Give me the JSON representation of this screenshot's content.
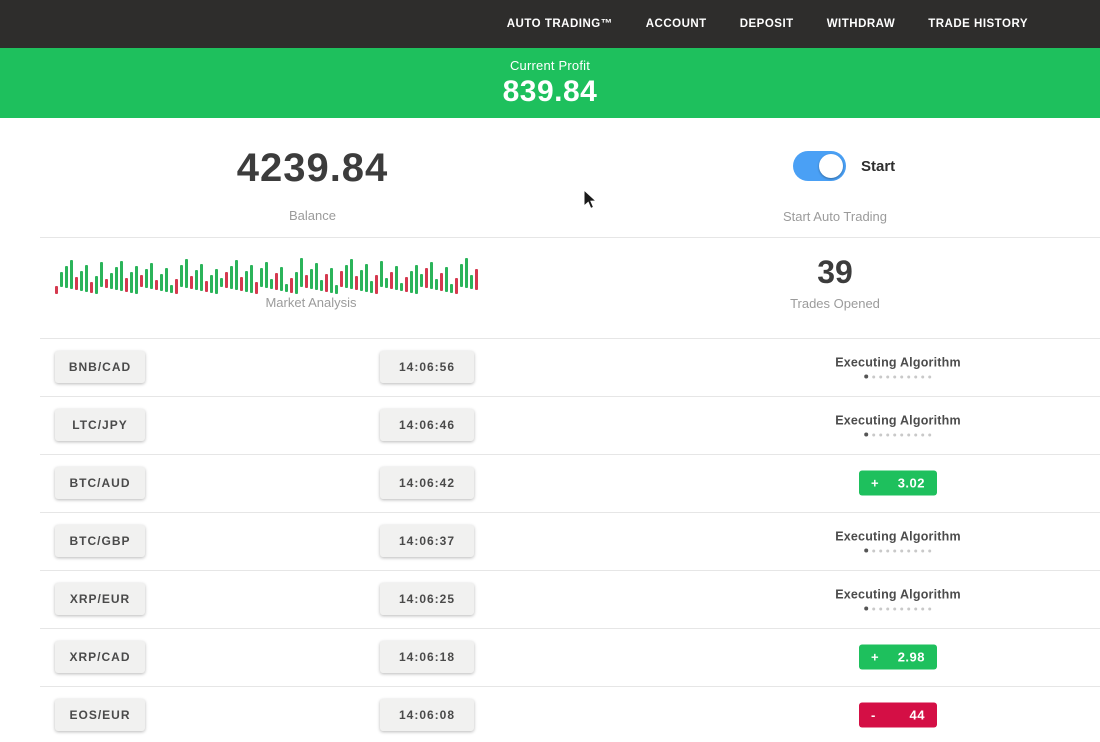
{
  "nav": {
    "items": [
      "AUTO TRADING™",
      "ACCOUNT",
      "DEPOSIT",
      "WITHDRAW",
      "TRADE HISTORY"
    ]
  },
  "profit_banner": {
    "label": "Current Profit",
    "value": "839.84"
  },
  "account": {
    "balance": "4239.84",
    "balance_label": "Balance",
    "toggle_label": "Start",
    "toggle_caption": "Start Auto Trading",
    "toggle_state": "on"
  },
  "market": {
    "analysis_label": "Market Analysis",
    "trades_opened": "39",
    "trades_opened_label": "Trades Opened"
  },
  "trades": [
    {
      "pair": "BNB/CAD",
      "time": "14:06:56",
      "status": {
        "type": "executing",
        "label": "Executing Algorithm"
      }
    },
    {
      "pair": "LTC/JPY",
      "time": "14:06:46",
      "status": {
        "type": "executing",
        "label": "Executing Algorithm"
      }
    },
    {
      "pair": "BTC/AUD",
      "time": "14:06:42",
      "status": {
        "type": "profit",
        "sign": "+",
        "value": "3.02"
      }
    },
    {
      "pair": "BTC/GBP",
      "time": "14:06:37",
      "status": {
        "type": "executing",
        "label": "Executing Algorithm"
      }
    },
    {
      "pair": "XRP/EUR",
      "time": "14:06:25",
      "status": {
        "type": "executing",
        "label": "Executing Algorithm"
      }
    },
    {
      "pair": "XRP/CAD",
      "time": "14:06:18",
      "status": {
        "type": "profit",
        "sign": "+",
        "value": "2.98"
      }
    },
    {
      "pair": "EOS/EUR",
      "time": "14:06:08",
      "status": {
        "type": "loss",
        "sign": "-",
        "value": "44"
      }
    }
  ],
  "colors": {
    "green": "#1ec05d",
    "red": "#d40f45",
    "nav_bg": "#2e2d2c",
    "toggle_blue": "#4aa0f5",
    "bar_green": "#2bb45a",
    "bar_red": "#d5394f"
  }
}
